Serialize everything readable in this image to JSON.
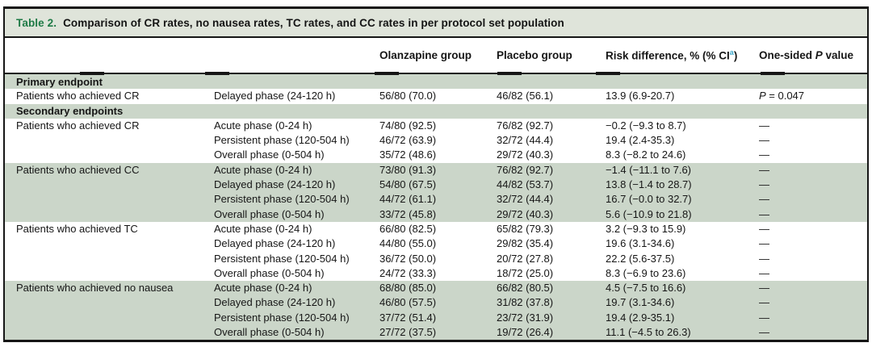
{
  "table": {
    "title": {
      "label": "Table 2.",
      "text": "Comparison of CR rates, no nausea rates, TC rates, and CC rates in per protocol set population"
    },
    "header": {
      "col_olanzapine": "Olanzapine group",
      "col_placebo": "Placebo group",
      "col_risk_prefix": "Risk difference, % (% CI",
      "col_risk_footnote_marker": "a",
      "col_risk_suffix": ")",
      "col_p_prefix": "One-sided ",
      "col_p_symbol": "P",
      "col_p_suffix": " value"
    },
    "rows": [
      {
        "type": "section",
        "label": "Primary endpoint"
      },
      {
        "type": "data",
        "shade": false,
        "endpoint": "Patients who achieved CR",
        "phase": "Delayed phase (24-120 h)",
        "olanzapine": "56/80 (70.0)",
        "placebo": "46/82 (56.1)",
        "risk_difference": "13.9 (6.9-20.7)",
        "p_value": {
          "symbol": "P",
          "rest": " = 0.047"
        }
      },
      {
        "type": "section",
        "label": "Secondary endpoints"
      },
      {
        "type": "data",
        "shade": false,
        "endpoint": "Patients who achieved CR",
        "phase": "Acute phase (0-24 h)",
        "olanzapine": "74/80 (92.5)",
        "placebo": "76/82 (92.7)",
        "risk_difference": "−0.2 (−9.3 to 8.7)",
        "p_value": "—"
      },
      {
        "type": "data",
        "shade": false,
        "endpoint": "",
        "phase": "Persistent phase (120-504 h)",
        "olanzapine": "46/72 (63.9)",
        "placebo": "32/72 (44.4)",
        "risk_difference": "19.4 (2.4-35.3)",
        "p_value": "—"
      },
      {
        "type": "data",
        "shade": false,
        "endpoint": "",
        "phase": "Overall phase (0-504 h)",
        "olanzapine": "35/72 (48.6)",
        "placebo": "29/72 (40.3)",
        "risk_difference": "8.3 (−8.2 to 24.6)",
        "p_value": "—"
      },
      {
        "type": "data",
        "shade": true,
        "endpoint": "Patients who achieved CC",
        "phase": "Acute phase (0-24 h)",
        "olanzapine": "73/80 (91.3)",
        "placebo": "76/82 (92.7)",
        "risk_difference": "−1.4 (−11.1 to 7.6)",
        "p_value": "—"
      },
      {
        "type": "data",
        "shade": true,
        "endpoint": "",
        "phase": "Delayed phase (24-120 h)",
        "olanzapine": "54/80 (67.5)",
        "placebo": "44/82 (53.7)",
        "risk_difference": "13.8 (−1.4 to 28.7)",
        "p_value": "—"
      },
      {
        "type": "data",
        "shade": true,
        "endpoint": "",
        "phase": "Persistent phase (120-504 h)",
        "olanzapine": "44/72 (61.1)",
        "placebo": "32/72 (44.4)",
        "risk_difference": "16.7 (−0.0 to 32.7)",
        "p_value": "—"
      },
      {
        "type": "data",
        "shade": true,
        "endpoint": "",
        "phase": "Overall phase (0-504 h)",
        "olanzapine": "33/72 (45.8)",
        "placebo": "29/72 (40.3)",
        "risk_difference": "5.6 (−10.9 to 21.8)",
        "p_value": "—"
      },
      {
        "type": "data",
        "shade": false,
        "endpoint": "Patients who achieved TC",
        "phase": "Acute phase (0-24 h)",
        "olanzapine": "66/80 (82.5)",
        "placebo": "65/82 (79.3)",
        "risk_difference": "3.2 (−9.3 to 15.9)",
        "p_value": "—"
      },
      {
        "type": "data",
        "shade": false,
        "endpoint": "",
        "phase": "Delayed phase (24-120 h)",
        "olanzapine": "44/80 (55.0)",
        "placebo": "29/82 (35.4)",
        "risk_difference": "19.6 (3.1-34.6)",
        "p_value": "—"
      },
      {
        "type": "data",
        "shade": false,
        "endpoint": "",
        "phase": "Persistent phase (120-504 h)",
        "olanzapine": "36/72 (50.0)",
        "placebo": "20/72 (27.8)",
        "risk_difference": "22.2 (5.6-37.5)",
        "p_value": "—"
      },
      {
        "type": "data",
        "shade": false,
        "endpoint": "",
        "phase": "Overall phase (0-504 h)",
        "olanzapine": "24/72 (33.3)",
        "placebo": "18/72 (25.0)",
        "risk_difference": "8.3 (−6.9 to 23.6)",
        "p_value": "—"
      },
      {
        "type": "data",
        "shade": true,
        "endpoint": "Patients who achieved no nausea",
        "phase": "Acute phase (0-24 h)",
        "olanzapine": "68/80 (85.0)",
        "placebo": "66/82 (80.5)",
        "risk_difference": "4.5 (−7.5 to 16.6)",
        "p_value": "—"
      },
      {
        "type": "data",
        "shade": true,
        "endpoint": "",
        "phase": "Delayed phase (24-120 h)",
        "olanzapine": "46/80 (57.5)",
        "placebo": "31/82 (37.8)",
        "risk_difference": "19.7 (3.1-34.6)",
        "p_value": "—"
      },
      {
        "type": "data",
        "shade": true,
        "endpoint": "",
        "phase": "Persistent phase (120-504 h)",
        "olanzapine": "37/72 (51.4)",
        "placebo": "23/72 (31.9)",
        "risk_difference": "19.4 (2.9-35.1)",
        "p_value": "—"
      },
      {
        "type": "data",
        "shade": true,
        "endpoint": "",
        "phase": "Overall phase (0-504 h)",
        "olanzapine": "27/72 (37.5)",
        "placebo": "19/72 (26.4)",
        "risk_difference": "11.1 (−4.5 to 26.3)",
        "p_value": "—"
      }
    ],
    "colors": {
      "shaded_row_bg": "#cbd6c9",
      "title_band_bg": "#dfe4da",
      "title_label_green": "#1f7a46",
      "footnote_marker_teal": "#3ba7c9",
      "border_black": "#161616"
    }
  }
}
